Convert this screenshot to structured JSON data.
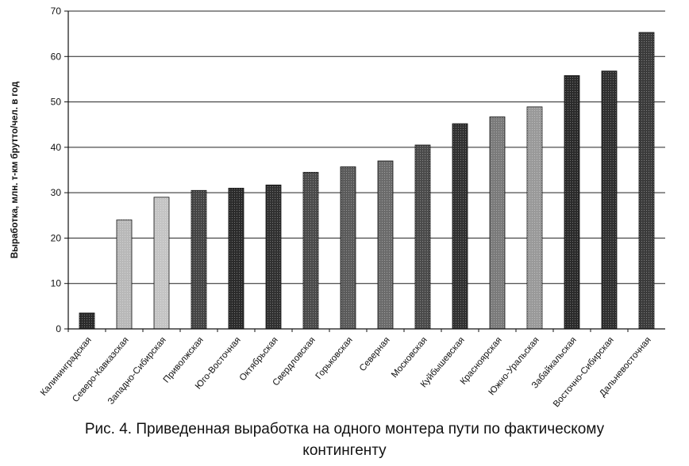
{
  "chart_data": {
    "type": "bar",
    "title": "",
    "xlabel": "",
    "ylabel": "Выработка, млн. т-км брутто/чел. в год",
    "ylim": [
      0,
      70
    ],
    "yticks": [
      "0",
      "10",
      "20",
      "30",
      "40",
      "50",
      "60",
      "70"
    ],
    "grid": true,
    "legend": "none",
    "categories": [
      "Калининградская",
      "Северо-Кавказская",
      "Западно-Сибирская",
      "Приволжская",
      "Юго-Восточная",
      "Октябрьская",
      "Свердловская",
      "Горьковская",
      "Северная",
      "Московская",
      "Куйбышевская",
      "Красноярская",
      "Южно-Уральская",
      "Забайкальская",
      "Восточно-Сибирская",
      "Дальневосточная"
    ],
    "values": [
      3.5,
      24,
      29,
      30.5,
      31,
      31.7,
      34.5,
      35.7,
      37,
      40.5,
      45.2,
      46.7,
      48.9,
      55.8,
      56.8,
      65.3
    ],
    "bar_colors": [
      "#2a2a2a",
      "#b8b8b8",
      "#c4c4c4",
      "#444444",
      "#2a2a2a",
      "#303030",
      "#4a4a4a",
      "#5a5a5a",
      "#6a6a6a",
      "#4a4a4a",
      "#303030",
      "#7a7a7a",
      "#999999",
      "#2a2a2a",
      "#2e2e2e",
      "#3a3a3a"
    ]
  },
  "caption": {
    "line1": "Рис. 4. Приведенная выработка на одного монтера пути по фактическому",
    "line2": "контингенту"
  }
}
